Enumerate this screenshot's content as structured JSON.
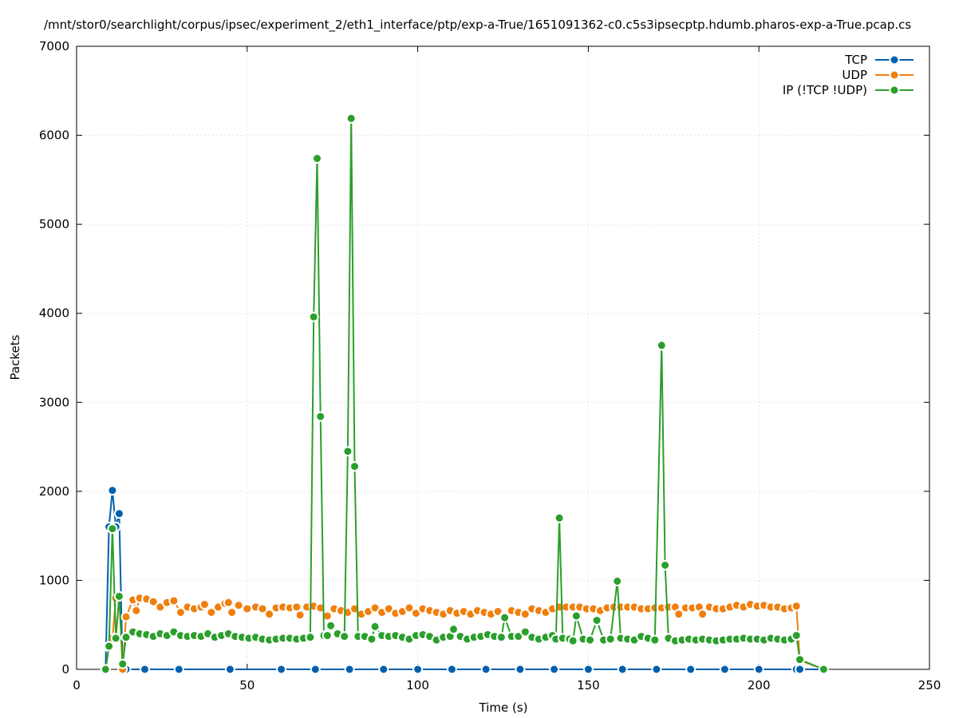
{
  "chart_data": {
    "type": "line",
    "title": "/mnt/stor0/searchlight/corpus/ipsec/experiment_2/eth1_interface/ptp/exp-a-True/1651091362-c0.c5s3ipsecptp.hdumb.pharos-exp-a-True.pcap.cs",
    "xlabel": "Time (s)",
    "ylabel": "Packets",
    "xlim": [
      0,
      250
    ],
    "ylim": [
      0,
      7000
    ],
    "xticks": [
      0,
      50,
      100,
      150,
      200,
      250
    ],
    "yticks": [
      0,
      1000,
      2000,
      3000,
      4000,
      5000,
      6000,
      7000
    ],
    "grid": true,
    "legend_position": "top-right",
    "series": [
      {
        "name": "TCP",
        "color": "#0060ad",
        "points": [
          [
            8.5,
            0
          ],
          [
            9.5,
            1600
          ],
          [
            10.5,
            2010
          ],
          [
            11.5,
            1600
          ],
          [
            12.5,
            1750
          ],
          [
            13.5,
            0
          ],
          [
            14.5,
            0
          ],
          [
            20,
            0
          ],
          [
            30,
            0
          ],
          [
            45,
            0
          ],
          [
            60,
            0
          ],
          [
            70,
            0
          ],
          [
            80,
            0
          ],
          [
            90,
            0
          ],
          [
            100,
            0
          ],
          [
            110,
            0
          ],
          [
            120,
            0
          ],
          [
            130,
            0
          ],
          [
            140,
            0
          ],
          [
            150,
            0
          ],
          [
            160,
            0
          ],
          [
            170,
            0
          ],
          [
            180,
            0
          ],
          [
            190,
            0
          ],
          [
            200,
            0
          ],
          [
            211,
            0
          ],
          [
            212,
            0
          ],
          [
            219,
            0
          ]
        ]
      },
      {
        "name": "UDP",
        "color": "#f07f0e",
        "points": [
          [
            8.5,
            0
          ],
          [
            9.5,
            250
          ],
          [
            10.5,
            350
          ],
          [
            11.5,
            800
          ],
          [
            12.5,
            820
          ],
          [
            13.5,
            0
          ],
          [
            14.5,
            590
          ],
          [
            16.5,
            780
          ],
          [
            17.5,
            660
          ],
          [
            18.5,
            800
          ],
          [
            20.5,
            790
          ],
          [
            22.5,
            760
          ],
          [
            24.5,
            700
          ],
          [
            26.5,
            750
          ],
          [
            28.5,
            770
          ],
          [
            30.5,
            640
          ],
          [
            32.5,
            700
          ],
          [
            34.5,
            680
          ],
          [
            36.5,
            700
          ],
          [
            37.5,
            730
          ],
          [
            39.5,
            640
          ],
          [
            41.5,
            700
          ],
          [
            43.5,
            740
          ],
          [
            44.5,
            750
          ],
          [
            45.5,
            640
          ],
          [
            47.5,
            720
          ],
          [
            50,
            680
          ],
          [
            52.5,
            700
          ],
          [
            54.5,
            680
          ],
          [
            56.5,
            620
          ],
          [
            58.5,
            690
          ],
          [
            60.5,
            700
          ],
          [
            62.5,
            690
          ],
          [
            64.5,
            700
          ],
          [
            65.5,
            610
          ],
          [
            67.5,
            700
          ],
          [
            69.5,
            710
          ],
          [
            71.5,
            690
          ],
          [
            73.5,
            600
          ],
          [
            75.5,
            680
          ],
          [
            77.5,
            660
          ],
          [
            79.5,
            640
          ],
          [
            81.5,
            680
          ],
          [
            83.5,
            620
          ],
          [
            85.5,
            650
          ],
          [
            87.5,
            690
          ],
          [
            89.5,
            640
          ],
          [
            91.5,
            680
          ],
          [
            93.5,
            630
          ],
          [
            95.5,
            650
          ],
          [
            97.5,
            690
          ],
          [
            99.5,
            630
          ],
          [
            101.5,
            680
          ],
          [
            103.5,
            660
          ],
          [
            105.5,
            640
          ],
          [
            107.5,
            620
          ],
          [
            109.5,
            660
          ],
          [
            111.5,
            630
          ],
          [
            113.5,
            650
          ],
          [
            115.5,
            620
          ],
          [
            117.5,
            660
          ],
          [
            119.5,
            640
          ],
          [
            121.5,
            620
          ],
          [
            123.5,
            650
          ],
          [
            125.5,
            600
          ],
          [
            127.5,
            660
          ],
          [
            129.5,
            640
          ],
          [
            131.5,
            620
          ],
          [
            133.5,
            680
          ],
          [
            135.5,
            660
          ],
          [
            137.5,
            640
          ],
          [
            139.5,
            680
          ],
          [
            141.5,
            700
          ],
          [
            143.5,
            700
          ],
          [
            145.5,
            700
          ],
          [
            147.5,
            700
          ],
          [
            149.5,
            680
          ],
          [
            151.5,
            680
          ],
          [
            153.5,
            660
          ],
          [
            155.5,
            690
          ],
          [
            157.5,
            700
          ],
          [
            159.5,
            700
          ],
          [
            161.5,
            700
          ],
          [
            163.5,
            700
          ],
          [
            165.5,
            680
          ],
          [
            167.5,
            680
          ],
          [
            169.5,
            690
          ],
          [
            171.5,
            690
          ],
          [
            173.5,
            700
          ],
          [
            175.5,
            700
          ],
          [
            176.5,
            620
          ],
          [
            178.5,
            690
          ],
          [
            180.5,
            690
          ],
          [
            182.5,
            700
          ],
          [
            183.5,
            620
          ],
          [
            185.5,
            700
          ],
          [
            187.5,
            680
          ],
          [
            189.5,
            680
          ],
          [
            191.5,
            700
          ],
          [
            193.5,
            720
          ],
          [
            195.5,
            700
          ],
          [
            197.5,
            730
          ],
          [
            199.5,
            710
          ],
          [
            201.5,
            720
          ],
          [
            203.5,
            700
          ],
          [
            205.5,
            700
          ],
          [
            207.5,
            680
          ],
          [
            209.5,
            690
          ],
          [
            211,
            710
          ],
          [
            212,
            100
          ],
          [
            219,
            0
          ]
        ]
      },
      {
        "name": "IP (!TCP  !UDP)",
        "color": "#2b9f2b",
        "points": [
          [
            8.5,
            0
          ],
          [
            9.5,
            260
          ],
          [
            10.5,
            1580
          ],
          [
            11.5,
            350
          ],
          [
            12.5,
            820
          ],
          [
            13.5,
            60
          ],
          [
            14.5,
            360
          ],
          [
            16.5,
            420
          ],
          [
            18.5,
            400
          ],
          [
            20.5,
            390
          ],
          [
            22.5,
            370
          ],
          [
            24.5,
            400
          ],
          [
            26.5,
            380
          ],
          [
            28.5,
            420
          ],
          [
            30.5,
            380
          ],
          [
            32.5,
            370
          ],
          [
            34.5,
            380
          ],
          [
            36.5,
            370
          ],
          [
            38.5,
            400
          ],
          [
            40.5,
            360
          ],
          [
            42.5,
            380
          ],
          [
            44.5,
            400
          ],
          [
            46.5,
            370
          ],
          [
            48.5,
            360
          ],
          [
            50.5,
            350
          ],
          [
            52.5,
            360
          ],
          [
            54.5,
            340
          ],
          [
            56.5,
            330
          ],
          [
            58.5,
            340
          ],
          [
            60.5,
            350
          ],
          [
            62.5,
            350
          ],
          [
            64.5,
            340
          ],
          [
            66.5,
            350
          ],
          [
            68.5,
            360
          ],
          [
            69.5,
            3960
          ],
          [
            70.5,
            5740
          ],
          [
            71.5,
            2840
          ],
          [
            72.5,
            380
          ],
          [
            73.5,
            380
          ],
          [
            74.5,
            490
          ],
          [
            76.5,
            400
          ],
          [
            78.5,
            370
          ],
          [
            79.5,
            2450
          ],
          [
            80.5,
            6190
          ],
          [
            81.5,
            2280
          ],
          [
            82.5,
            370
          ],
          [
            84.5,
            370
          ],
          [
            86.5,
            340
          ],
          [
            87.5,
            480
          ],
          [
            89.5,
            380
          ],
          [
            91.5,
            370
          ],
          [
            93.5,
            380
          ],
          [
            95.5,
            360
          ],
          [
            97.5,
            340
          ],
          [
            99.5,
            380
          ],
          [
            101.5,
            390
          ],
          [
            103.5,
            370
          ],
          [
            105.5,
            330
          ],
          [
            107.5,
            360
          ],
          [
            109.5,
            370
          ],
          [
            110.5,
            450
          ],
          [
            112.5,
            370
          ],
          [
            114.5,
            340
          ],
          [
            116.5,
            360
          ],
          [
            118.5,
            370
          ],
          [
            120.5,
            390
          ],
          [
            122.5,
            370
          ],
          [
            124.5,
            360
          ],
          [
            125.5,
            580
          ],
          [
            127.5,
            370
          ],
          [
            129.5,
            370
          ],
          [
            131.5,
            420
          ],
          [
            133.5,
            360
          ],
          [
            135.5,
            340
          ],
          [
            137.5,
            360
          ],
          [
            139.5,
            380
          ],
          [
            140.5,
            340
          ],
          [
            141.5,
            1700
          ],
          [
            142.5,
            350
          ],
          [
            144.5,
            340
          ],
          [
            145.5,
            320
          ],
          [
            146.5,
            600
          ],
          [
            148.5,
            340
          ],
          [
            150.5,
            330
          ],
          [
            152.5,
            550
          ],
          [
            154.5,
            330
          ],
          [
            156.5,
            340
          ],
          [
            158.5,
            990
          ],
          [
            159.5,
            350
          ],
          [
            161.5,
            340
          ],
          [
            163.5,
            330
          ],
          [
            165.5,
            370
          ],
          [
            167.5,
            350
          ],
          [
            169.5,
            330
          ],
          [
            171.5,
            3640
          ],
          [
            172.5,
            1170
          ],
          [
            173.5,
            350
          ],
          [
            175.5,
            320
          ],
          [
            177.5,
            330
          ],
          [
            179.5,
            340
          ],
          [
            181.5,
            330
          ],
          [
            183.5,
            340
          ],
          [
            185.5,
            330
          ],
          [
            187.5,
            320
          ],
          [
            189.5,
            330
          ],
          [
            191.5,
            340
          ],
          [
            193.5,
            340
          ],
          [
            195.5,
            350
          ],
          [
            197.5,
            340
          ],
          [
            199.5,
            340
          ],
          [
            201.5,
            330
          ],
          [
            203.5,
            350
          ],
          [
            205.5,
            340
          ],
          [
            207.5,
            330
          ],
          [
            209.5,
            340
          ],
          [
            211,
            380
          ],
          [
            212,
            110
          ],
          [
            219,
            0
          ]
        ]
      }
    ]
  }
}
